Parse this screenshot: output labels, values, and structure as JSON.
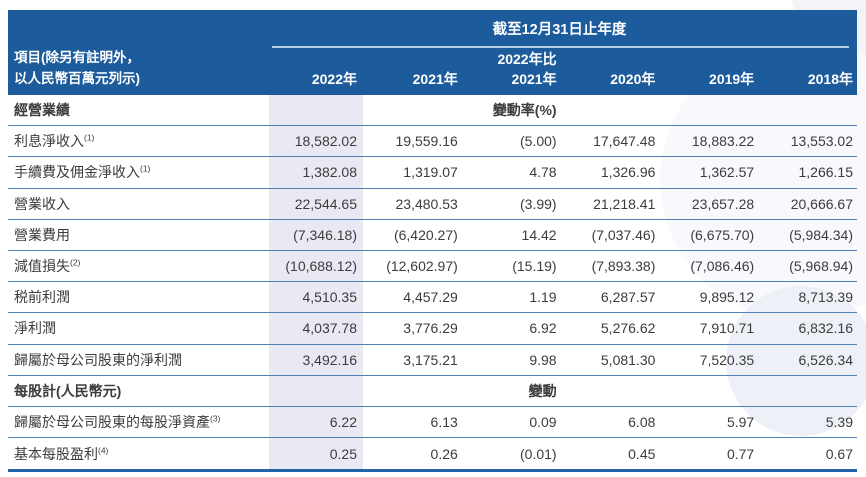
{
  "colors": {
    "header_blue": "#1c5b9c",
    "row_separator": "#4f81b5",
    "highlight_column": "#e9e9f3",
    "bottom_border": "#2263a7"
  },
  "table": {
    "corner_label": {
      "line1": "項目(除另有註明外，",
      "line2": "以人民幣百萬元列示)"
    },
    "period_header": "截至12月31日止年度",
    "change_header_top": "2022年比",
    "columns": [
      "2022年",
      "2021年",
      "2021年",
      "2020年",
      "2019年",
      "2018年"
    ],
    "rows": [
      {
        "type": "section",
        "label": "經營業績",
        "col3": "變動率(%)"
      },
      {
        "type": "data",
        "label": "利息淨收入",
        "sup": "(1)",
        "values": [
          "18,582.02",
          "19,559.16",
          "(5.00)",
          "17,647.48",
          "18,883.22",
          "13,553.02"
        ]
      },
      {
        "type": "data",
        "label": "手續費及佣金淨收入",
        "sup": "(1)",
        "values": [
          "1,382.08",
          "1,319.07",
          "4.78",
          "1,326.96",
          "1,362.57",
          "1,266.15"
        ]
      },
      {
        "type": "data",
        "label": "營業收入",
        "values": [
          "22,544.65",
          "23,480.53",
          "(3.99)",
          "21,218.41",
          "23,657.28",
          "20,666.67"
        ]
      },
      {
        "type": "data",
        "label": "營業費用",
        "values": [
          "(7,346.18)",
          "(6,420.27)",
          "14.42",
          "(7,037.46)",
          "(6,675.70)",
          "(5,984.34)"
        ]
      },
      {
        "type": "data",
        "label": "減值損失",
        "sup": "(2)",
        "values": [
          "(10,688.12)",
          "(12,602.97)",
          "(15.19)",
          "(7,893.38)",
          "(7,086.46)",
          "(5,968.94)"
        ]
      },
      {
        "type": "data",
        "label": "税前利潤",
        "values": [
          "4,510.35",
          "4,457.29",
          "1.19",
          "6,287.57",
          "9,895.12",
          "8,713.39"
        ]
      },
      {
        "type": "data",
        "label": "淨利潤",
        "values": [
          "4,037.78",
          "3,776.29",
          "6.92",
          "5,276.62",
          "7,910.71",
          "6,832.16"
        ]
      },
      {
        "type": "data",
        "label": "歸屬於母公司股東的淨利潤",
        "values": [
          "3,492.16",
          "3,175.21",
          "9.98",
          "5,081.30",
          "7,520.35",
          "6,526.34"
        ]
      },
      {
        "type": "section",
        "label": "每股計(人民幣元)",
        "col3": "變動"
      },
      {
        "type": "data",
        "label": "歸屬於母公司股東的每股淨資產",
        "sup": "(3)",
        "values": [
          "6.22",
          "6.13",
          "0.09",
          "6.08",
          "5.97",
          "5.39"
        ]
      },
      {
        "type": "data",
        "label": "基本每股盈利",
        "sup": "(4)",
        "values": [
          "0.25",
          "0.26",
          "(0.01)",
          "0.45",
          "0.77",
          "0.67"
        ]
      }
    ]
  }
}
